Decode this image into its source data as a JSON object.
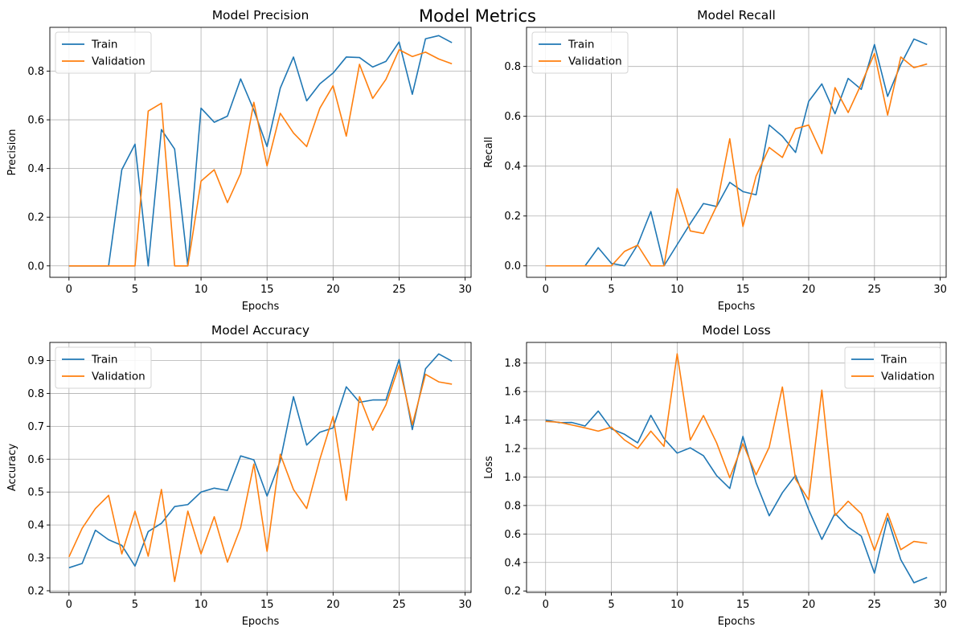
{
  "figure": {
    "suptitle": "Model Metrics"
  },
  "colors": {
    "train": "#1f77b4",
    "validation": "#ff7f0e",
    "grid": "#b0b0b0"
  },
  "chart_data": [
    {
      "type": "line",
      "title": "Model Precision",
      "xlabel": "Epochs",
      "ylabel": "Precision",
      "xlim": [
        -1.45,
        30.45
      ],
      "ylim": [
        -0.047,
        0.98
      ],
      "xticks": [
        0,
        5,
        10,
        15,
        20,
        25,
        30
      ],
      "yticks": [
        0.0,
        0.2,
        0.4,
        0.6,
        0.8
      ],
      "ytick_labels": [
        "0.0",
        "0.2",
        "0.4",
        "0.6",
        "0.8"
      ],
      "grid": true,
      "legend_position": "upper left",
      "x": [
        0,
        1,
        2,
        3,
        4,
        5,
        6,
        7,
        8,
        9,
        10,
        11,
        12,
        13,
        14,
        15,
        16,
        17,
        18,
        19,
        20,
        21,
        22,
        23,
        24,
        25,
        26,
        27,
        28,
        29
      ],
      "series": [
        {
          "name": "Train",
          "values": [
            0,
            0,
            0,
            0,
            0.395,
            0.5,
            0,
            0.56,
            0.48,
            0,
            0.648,
            0.59,
            0.615,
            0.768,
            0.64,
            0.49,
            0.73,
            0.858,
            0.678,
            0.748,
            0.792,
            0.858,
            0.856,
            0.817,
            0.84,
            0.92,
            0.705,
            0.933,
            0.946,
            0.917
          ]
        },
        {
          "name": "Validation",
          "values": [
            0,
            0,
            0,
            0,
            0,
            0,
            0.636,
            0.668,
            0,
            0,
            0.348,
            0.395,
            0.26,
            0.38,
            0.672,
            0.411,
            0.627,
            0.546,
            0.49,
            0.648,
            0.74,
            0.533,
            0.828,
            0.688,
            0.766,
            0.888,
            0.86,
            0.878,
            0.85,
            0.83
          ]
        }
      ]
    },
    {
      "type": "line",
      "title": "Model Recall",
      "xlabel": "Epochs",
      "ylabel": "Recall",
      "xlim": [
        -1.45,
        30.45
      ],
      "ylim": [
        -0.046,
        0.957
      ],
      "xticks": [
        0,
        5,
        10,
        15,
        20,
        25,
        30
      ],
      "yticks": [
        0.0,
        0.2,
        0.4,
        0.6,
        0.8
      ],
      "ytick_labels": [
        "0.0",
        "0.2",
        "0.4",
        "0.6",
        "0.8"
      ],
      "grid": true,
      "legend_position": "upper left",
      "x": [
        0,
        1,
        2,
        3,
        4,
        5,
        6,
        7,
        8,
        9,
        10,
        11,
        12,
        13,
        14,
        15,
        16,
        17,
        18,
        19,
        20,
        21,
        22,
        23,
        24,
        25,
        26,
        27,
        28,
        29
      ],
      "series": [
        {
          "name": "Train",
          "values": [
            0,
            0,
            0,
            0,
            0.073,
            0.01,
            0,
            0.085,
            0.218,
            0,
            0.085,
            0.17,
            0.25,
            0.238,
            0.335,
            0.298,
            0.285,
            0.565,
            0.52,
            0.455,
            0.66,
            0.73,
            0.61,
            0.752,
            0.708,
            0.888,
            0.68,
            0.808,
            0.91,
            0.888
          ]
        },
        {
          "name": "Validation",
          "values": [
            0,
            0,
            0,
            0,
            0,
            0,
            0.058,
            0.083,
            0,
            0,
            0.31,
            0.14,
            0.13,
            0.24,
            0.51,
            0.158,
            0.36,
            0.475,
            0.435,
            0.55,
            0.565,
            0.45,
            0.715,
            0.615,
            0.73,
            0.852,
            0.605,
            0.838,
            0.795,
            0.81
          ]
        }
      ]
    },
    {
      "type": "line",
      "title": "Model Accuracy",
      "xlabel": "Epochs",
      "ylabel": "Accuracy",
      "xlim": [
        -1.45,
        30.45
      ],
      "ylim": [
        0.195,
        0.955
      ],
      "xticks": [
        0,
        5,
        10,
        15,
        20,
        25,
        30
      ],
      "yticks": [
        0.2,
        0.3,
        0.4,
        0.5,
        0.6,
        0.7,
        0.8,
        0.9
      ],
      "ytick_labels": [
        "0.2",
        "0.3",
        "0.4",
        "0.5",
        "0.6",
        "0.7",
        "0.8",
        "0.9"
      ],
      "grid": true,
      "legend_position": "upper left",
      "x": [
        0,
        1,
        2,
        3,
        4,
        5,
        6,
        7,
        8,
        9,
        10,
        11,
        12,
        13,
        14,
        15,
        16,
        17,
        18,
        19,
        20,
        21,
        22,
        23,
        24,
        25,
        26,
        27,
        28,
        29
      ],
      "series": [
        {
          "name": "Train",
          "values": [
            0.27,
            0.283,
            0.384,
            0.355,
            0.338,
            0.275,
            0.38,
            0.405,
            0.456,
            0.462,
            0.5,
            0.512,
            0.505,
            0.61,
            0.598,
            0.488,
            0.595,
            0.79,
            0.643,
            0.682,
            0.695,
            0.82,
            0.773,
            0.78,
            0.78,
            0.903,
            0.69,
            0.875,
            0.92,
            0.898
          ]
        },
        {
          "name": "Validation",
          "values": [
            0.303,
            0.39,
            0.45,
            0.49,
            0.312,
            0.442,
            0.305,
            0.508,
            0.228,
            0.442,
            0.312,
            0.425,
            0.287,
            0.392,
            0.585,
            0.32,
            0.615,
            0.508,
            0.45,
            0.6,
            0.73,
            0.475,
            0.79,
            0.688,
            0.765,
            0.885,
            0.705,
            0.858,
            0.835,
            0.828
          ]
        }
      ]
    },
    {
      "type": "line",
      "title": "Model Loss",
      "xlabel": "Epochs",
      "ylabel": "Loss",
      "xlim": [
        -1.45,
        30.45
      ],
      "ylim": [
        0.19,
        1.945
      ],
      "xticks": [
        0,
        5,
        10,
        15,
        20,
        25,
        30
      ],
      "yticks": [
        0.2,
        0.4,
        0.6,
        0.8,
        1.0,
        1.2,
        1.4,
        1.6,
        1.8
      ],
      "ytick_labels": [
        "0.2",
        "0.4",
        "0.6",
        "0.8",
        "1.0",
        "1.2",
        "1.4",
        "1.6",
        "1.8"
      ],
      "grid": true,
      "legend_position": "upper right",
      "x": [
        0,
        1,
        2,
        3,
        4,
        5,
        6,
        7,
        8,
        9,
        10,
        11,
        12,
        13,
        14,
        15,
        16,
        17,
        18,
        19,
        20,
        21,
        22,
        23,
        24,
        25,
        26,
        27,
        28,
        29
      ],
      "series": [
        {
          "name": "Train",
          "values": [
            1.4,
            1.382,
            1.383,
            1.358,
            1.463,
            1.338,
            1.3,
            1.24,
            1.433,
            1.27,
            1.168,
            1.205,
            1.15,
            1.01,
            0.92,
            1.285,
            0.96,
            0.728,
            0.89,
            1.012,
            0.77,
            0.562,
            0.745,
            0.648,
            0.585,
            0.325,
            0.712,
            0.42,
            0.258,
            0.295
          ]
        },
        {
          "name": "Validation",
          "values": [
            1.39,
            1.385,
            1.365,
            1.345,
            1.322,
            1.35,
            1.26,
            1.2,
            1.322,
            1.215,
            1.865,
            1.26,
            1.432,
            1.24,
            0.995,
            1.235,
            1.015,
            1.21,
            1.632,
            0.985,
            0.84,
            1.61,
            0.73,
            0.83,
            0.742,
            0.485,
            0.745,
            0.49,
            0.548,
            0.535
          ]
        }
      ]
    }
  ]
}
